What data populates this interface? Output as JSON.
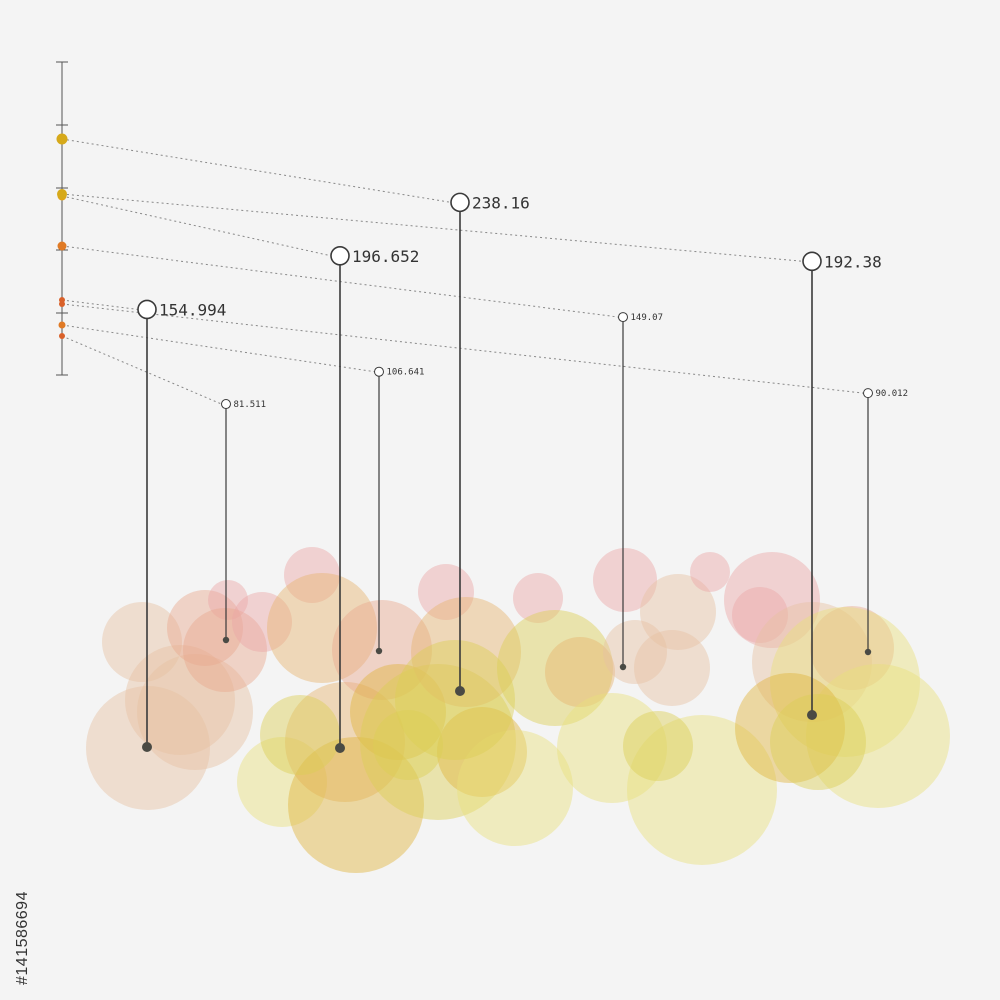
{
  "colors": {
    "background": "#f4f4f4",
    "stem": "#3a3a3a",
    "scale": "#555555",
    "bubble_palette": [
      "#e8a98f",
      "#e6c0a2",
      "#eaa7a7",
      "#e7b36e",
      "#e0b43c",
      "#dccf55",
      "#e8df7c"
    ]
  },
  "watermark": {
    "text": "#141586694"
  },
  "chart_data": {
    "type": "scatter",
    "title": "",
    "xlabel": "",
    "ylabel": "",
    "grid": false,
    "legend": "none",
    "ylim": [
      0,
      260
    ],
    "series": [
      {
        "value": 154.994,
        "label": "154.994"
      },
      {
        "value": 81.511,
        "label": "81.511"
      },
      {
        "value": 196.652,
        "label": "196.652"
      },
      {
        "value": 106.641,
        "label": "106.641"
      },
      {
        "value": 238.16,
        "label": "238.16"
      },
      {
        "value": 149.07,
        "label": "149.07"
      },
      {
        "value": 192.38,
        "label": "192.38"
      },
      {
        "value": 90.012,
        "label": "90.012"
      }
    ]
  }
}
